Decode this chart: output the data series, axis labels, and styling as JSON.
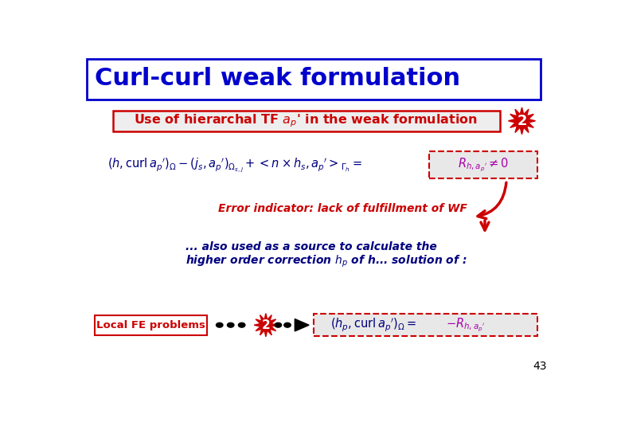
{
  "title": "Curl-curl weak formulation",
  "title_color": "#0000CC",
  "title_fontsize": 22,
  "bg_color": "#FFFFFF",
  "title_box_color": "#0000CC",
  "subtitle_text": "Use of hierarchal TF $a_p$' in the weak formulation",
  "subtitle_color": "#CC0000",
  "subtitle_bg": "#EEEEEE",
  "subtitle_border": "#CC0000",
  "star_color": "#CC0000",
  "star_label": "2",
  "eq1_left": "$(h,\\mathrm{curl}\\,a_p{}^{\\prime})_\\Omega-(j_s,a_p{}^{\\prime})_{\\Omega_{s,j}}+<n\\times h_s,a_p{}^{\\prime}>_{\\Gamma_h}=$",
  "eq1_right": "$R_{h,a_p{}^{\\prime}}\\neq 0$",
  "eq1_left_color": "#000080",
  "eq1_right_color": "#AA00AA",
  "eq1_box_color": "#CC0000",
  "error_text": "Error indicator: lack of fulfillment of WF",
  "error_color": "#CC0000",
  "source_line1": "... also used as a source to calculate the",
  "source_line2": "higher order correction $h_p$ of h... solution of :",
  "source_color": "#000080",
  "local_fe_text": "Local FE problems",
  "local_fe_color": "#CC0000",
  "local_fe_bg": "#FFFFFF",
  "eq2_left": "$(h_p,\\mathrm{curl}\\,a_p{}^{\\prime})_\\Omega=$",
  "eq2_right": "$-R_{h,a_p{}^{\\prime}}$",
  "eq2_left_color": "#000080",
  "eq2_right_color": "#AA00AA",
  "eq2_box_color": "#CC0000",
  "page_number": "43",
  "arrow_color": "#CC0000"
}
